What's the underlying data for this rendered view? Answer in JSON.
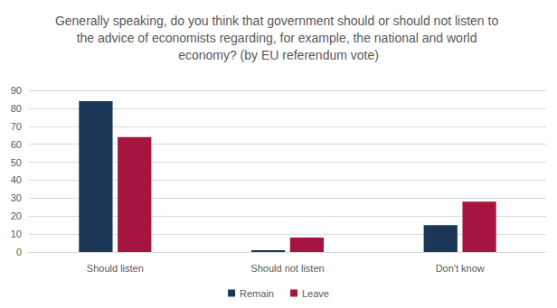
{
  "chart_data": {
    "type": "bar",
    "title": "Generally speaking, do you think that government should or should not listen to the advice of economists regarding, for example, the national and world economy? (by EU referendum vote)",
    "categories": [
      "Should listen",
      "Should not listen",
      "Don't know"
    ],
    "series": [
      {
        "name": "Remain",
        "color": "#1b3657",
        "values": [
          84,
          1,
          15
        ]
      },
      {
        "name": "Leave",
        "color": "#a5153f",
        "values": [
          64,
          8,
          28
        ]
      }
    ],
    "ylim": [
      0,
      90
    ],
    "yticks": [
      0,
      10,
      20,
      30,
      40,
      50,
      60,
      70,
      80,
      90
    ],
    "grid": true,
    "legend": "bottom"
  }
}
